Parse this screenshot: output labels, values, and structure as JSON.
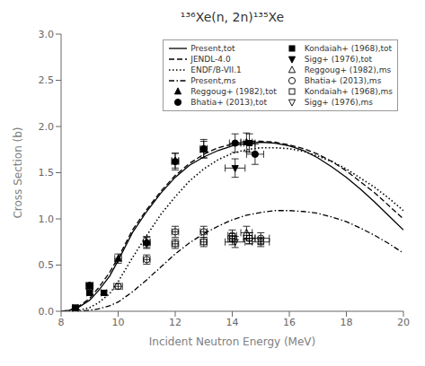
{
  "chart_data": {
    "type": "line",
    "title": "¹³⁶Xe(n, 2n)¹³⁵Xe",
    "xlabel": "Incident Neutron Energy (MeV)",
    "ylabel": "Cross Section (b)",
    "xlim": [
      8,
      20
    ],
    "ylim": [
      0,
      3
    ],
    "xticks": [
      8,
      10,
      12,
      14,
      16,
      18,
      20
    ],
    "yticks": [
      {
        "value": 0,
        "label": "0.0"
      },
      {
        "value": 0.5,
        "label": "0.5"
      },
      {
        "value": 1,
        "label": "1.0"
      },
      {
        "value": 1.5,
        "label": "1.5"
      },
      {
        "value": 2,
        "label": "2.0"
      },
      {
        "value": 2.5,
        "label": "2.5"
      },
      {
        "value": 3,
        "label": "3.0"
      }
    ],
    "grid": false,
    "legend": "upper right",
    "series": [
      {
        "name": "Present,tot",
        "type": "line",
        "line_style": "solid",
        "color": "black",
        "x": [
          8.0,
          8.3,
          8.6,
          9.0,
          9.3,
          9.7,
          10.0,
          10.5,
          11.0,
          11.5,
          12.0,
          12.5,
          13.0,
          13.5,
          14.0,
          14.5,
          15.0,
          15.5,
          16.0,
          16.5,
          17.0,
          17.5,
          18.0,
          18.5,
          19.0,
          19.5,
          20.0
        ],
        "values": [
          0.0,
          0.01,
          0.04,
          0.12,
          0.22,
          0.38,
          0.55,
          0.85,
          1.08,
          1.28,
          1.45,
          1.58,
          1.67,
          1.74,
          1.79,
          1.82,
          1.83,
          1.82,
          1.79,
          1.74,
          1.66,
          1.56,
          1.45,
          1.32,
          1.18,
          1.03,
          0.88
        ]
      },
      {
        "name": "JENDL-4.0",
        "type": "line",
        "line_style": "dashed",
        "color": "black",
        "x": [
          8.0,
          8.3,
          8.6,
          9.0,
          9.3,
          9.7,
          10.0,
          10.5,
          11.0,
          11.5,
          12.0,
          12.5,
          13.0,
          13.5,
          14.0,
          14.5,
          15.0,
          15.5,
          16.0,
          16.5,
          17.0,
          17.5,
          18.0,
          18.5,
          19.0,
          19.5,
          20.0
        ],
        "values": [
          0.0,
          0.01,
          0.05,
          0.14,
          0.25,
          0.42,
          0.58,
          0.88,
          1.1,
          1.3,
          1.47,
          1.6,
          1.7,
          1.77,
          1.81,
          1.84,
          1.84,
          1.83,
          1.8,
          1.76,
          1.7,
          1.62,
          1.52,
          1.4,
          1.28,
          1.14,
          1.0
        ]
      },
      {
        "name": "ENDF/B-VII.1",
        "type": "line",
        "line_style": "dotted",
        "color": "black",
        "x": [
          8.0,
          8.3,
          8.6,
          9.0,
          9.3,
          9.7,
          10.0,
          10.5,
          11.0,
          11.5,
          12.0,
          12.5,
          13.0,
          13.5,
          14.0,
          14.5,
          15.0,
          15.5,
          16.0,
          16.5,
          17.0,
          17.5,
          18.0,
          18.5,
          19.0,
          19.5,
          20.0
        ],
        "values": [
          0.0,
          0.003,
          0.01,
          0.04,
          0.09,
          0.19,
          0.32,
          0.58,
          0.82,
          1.05,
          1.24,
          1.41,
          1.54,
          1.64,
          1.71,
          1.75,
          1.77,
          1.77,
          1.76,
          1.73,
          1.68,
          1.62,
          1.54,
          1.44,
          1.34,
          1.22,
          1.09
        ]
      },
      {
        "name": "Present,ms",
        "type": "line",
        "line_style": "dashdot",
        "color": "black",
        "x": [
          8.0,
          8.3,
          8.6,
          9.0,
          9.3,
          9.7,
          10.0,
          10.5,
          11.0,
          11.5,
          12.0,
          12.5,
          13.0,
          13.5,
          14.0,
          14.5,
          15.0,
          15.5,
          16.0,
          16.5,
          17.0,
          17.5,
          18.0,
          18.5,
          19.0,
          19.5,
          20.0
        ],
        "values": [
          0.0,
          0.0,
          0.002,
          0.01,
          0.025,
          0.06,
          0.1,
          0.21,
          0.34,
          0.48,
          0.62,
          0.74,
          0.84,
          0.92,
          0.99,
          1.04,
          1.07,
          1.09,
          1.09,
          1.08,
          1.06,
          1.02,
          0.97,
          0.9,
          0.82,
          0.73,
          0.63
        ]
      },
      {
        "name": "Reggoug+ (1982),tot",
        "type": "scatter",
        "marker": "triangle-up",
        "color": "black",
        "x": [
          9.0,
          10.0,
          11.0,
          12.0,
          13.0,
          14.5
        ],
        "values": [
          0.27,
          0.57,
          0.75,
          1.63,
          1.75,
          1.83
        ],
        "xerr": [
          0.12,
          0.12,
          0.12,
          0.12,
          0.12,
          0.2
        ],
        "yerr": [
          0.03,
          0.05,
          0.06,
          0.08,
          0.09,
          0.1
        ]
      },
      {
        "name": "Bhatia+ (2013),tot",
        "type": "scatter",
        "marker": "circle",
        "color": "black",
        "x": [
          9.0,
          11.0,
          12.0,
          13.0,
          14.1,
          14.8
        ],
        "values": [
          0.28,
          0.74,
          1.62,
          1.76,
          1.82,
          1.7
        ],
        "xerr": [
          0.12,
          0.12,
          0.12,
          0.12,
          0.2,
          0.3
        ],
        "yerr": [
          0.03,
          0.06,
          0.09,
          0.1,
          0.1,
          0.11
        ]
      },
      {
        "name": "Kondaiah+ (1968),tot",
        "type": "scatter",
        "marker": "square",
        "color": "black",
        "x": [
          8.5,
          9.0,
          9.5,
          14.6
        ],
        "values": [
          0.04,
          0.2,
          0.2,
          1.82
        ],
        "xerr": [
          0.1,
          0.1,
          0.1,
          0.2
        ],
        "yerr": [
          0.01,
          0.02,
          0.02,
          0.1
        ]
      },
      {
        "name": "Sigg+ (1976),tot",
        "type": "scatter",
        "marker": "triangle-down",
        "color": "black",
        "x": [
          14.1
        ],
        "values": [
          1.55
        ],
        "xerr": [
          0.35
        ],
        "yerr": [
          0.1
        ]
      },
      {
        "name": "Reggoug+ (1982),ms",
        "type": "scatter",
        "marker": "triangle-up-open",
        "color": "black",
        "x": [
          14.5
        ],
        "values": [
          0.85
        ],
        "xerr": [
          0.2
        ],
        "yerr": [
          0.07
        ]
      },
      {
        "name": "Bhatia+ (2013),ms",
        "type": "scatter",
        "marker": "circle-open",
        "color": "black",
        "x": [
          10.0,
          11.0,
          12.0,
          13.0,
          14.0,
          14.6,
          15.0
        ],
        "values": [
          0.27,
          0.56,
          0.86,
          0.86,
          0.82,
          0.79,
          0.79
        ],
        "xerr": [
          0.15,
          0.12,
          0.12,
          0.12,
          0.15,
          0.2,
          0.3
        ],
        "yerr": [
          0.03,
          0.05,
          0.06,
          0.06,
          0.06,
          0.06,
          0.06
        ]
      },
      {
        "name": "Kondaiah+ (1968),ms",
        "type": "scatter",
        "marker": "square-open",
        "color": "black",
        "x": [
          8.5,
          12.0,
          13.0,
          14.0,
          14.6,
          15.0
        ],
        "values": [
          0.03,
          0.73,
          0.75,
          0.78,
          0.79,
          0.75
        ],
        "xerr": [
          0.1,
          0.12,
          0.12,
          0.15,
          0.2,
          0.3
        ],
        "yerr": [
          0.01,
          0.05,
          0.05,
          0.06,
          0.06,
          0.05
        ]
      },
      {
        "name": "Sigg+ (1976),ms",
        "type": "scatter",
        "marker": "triangle-down-open",
        "color": "black",
        "x": [
          14.1
        ],
        "values": [
          0.75
        ],
        "xerr": [
          0.35
        ],
        "yerr": [
          0.06
        ]
      }
    ]
  }
}
